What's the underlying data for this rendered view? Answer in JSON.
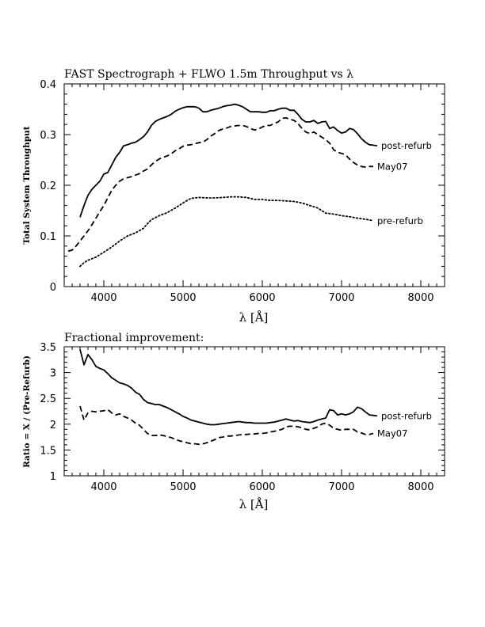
{
  "chart_data": [
    {
      "type": "line",
      "title": "FAST Spectrograph + FLWO 1.5m Throughput vs λ",
      "xlabel": "λ [Å]",
      "ylabel": "Total System Throughput",
      "xlim": [
        3500,
        8300
      ],
      "ylim": [
        0,
        0.4
      ],
      "xticks": [
        4000,
        5000,
        6000,
        7000,
        8000
      ],
      "xtick_labels": [
        "4000",
        "5000",
        "6000",
        "7000",
        "8000"
      ],
      "yticks": [
        0,
        0.1,
        0.2,
        0.3,
        0.4
      ],
      "ytick_labels": [
        "0",
        "0.1",
        "0.2",
        "0.3",
        "0.4"
      ],
      "legend": "inline end labels",
      "series": [
        {
          "name": "post-refurb",
          "style": "solid",
          "x": [
            3700,
            3750,
            3800,
            3850,
            3900,
            3950,
            4000,
            4050,
            4100,
            4150,
            4200,
            4250,
            4300,
            4350,
            4400,
            4450,
            4500,
            4550,
            4600,
            4650,
            4700,
            4750,
            4800,
            4850,
            4900,
            4950,
            5000,
            5050,
            5100,
            5150,
            5200,
            5250,
            5300,
            5350,
            5400,
            5450,
            5500,
            5550,
            5600,
            5650,
            5700,
            5750,
            5800,
            5850,
            5900,
            5950,
            6000,
            6050,
            6100,
            6150,
            6200,
            6250,
            6300,
            6350,
            6400,
            6450,
            6500,
            6550,
            6600,
            6650,
            6700,
            6750,
            6800,
            6850,
            6900,
            6950,
            7000,
            7050,
            7100,
            7150,
            7200,
            7250,
            7300,
            7350,
            7400,
            7450
          ],
          "y": [
            0.137,
            0.16,
            0.18,
            0.192,
            0.2,
            0.208,
            0.222,
            0.225,
            0.24,
            0.255,
            0.265,
            0.278,
            0.28,
            0.283,
            0.285,
            0.29,
            0.296,
            0.305,
            0.318,
            0.326,
            0.33,
            0.333,
            0.336,
            0.34,
            0.346,
            0.35,
            0.353,
            0.355,
            0.355,
            0.355,
            0.352,
            0.345,
            0.345,
            0.348,
            0.35,
            0.352,
            0.355,
            0.357,
            0.358,
            0.36,
            0.358,
            0.355,
            0.35,
            0.345,
            0.345,
            0.345,
            0.344,
            0.344,
            0.347,
            0.347,
            0.35,
            0.352,
            0.352,
            0.348,
            0.348,
            0.34,
            0.33,
            0.325,
            0.325,
            0.328,
            0.322,
            0.325,
            0.326,
            0.312,
            0.315,
            0.308,
            0.303,
            0.305,
            0.312,
            0.31,
            0.302,
            0.292,
            0.285,
            0.28,
            0.279,
            0.278
          ]
        },
        {
          "name": "May07",
          "style": "dashed",
          "x": [
            3550,
            3600,
            3650,
            3700,
            3750,
            3800,
            3850,
            3900,
            3950,
            4000,
            4050,
            4100,
            4150,
            4200,
            4250,
            4300,
            4350,
            4400,
            4450,
            4500,
            4550,
            4600,
            4650,
            4700,
            4750,
            4800,
            4850,
            4900,
            4950,
            5000,
            5050,
            5100,
            5150,
            5200,
            5250,
            5300,
            5350,
            5400,
            5450,
            5500,
            5550,
            5600,
            5650,
            5700,
            5750,
            5800,
            5850,
            5900,
            5950,
            6000,
            6050,
            6100,
            6150,
            6200,
            6250,
            6300,
            6350,
            6400,
            6450,
            6500,
            6550,
            6600,
            6650,
            6700,
            6750,
            6800,
            6850,
            6900,
            6950,
            7000,
            7050,
            7100,
            7150,
            7200,
            7250,
            7300,
            7350,
            7400
          ],
          "y": [
            0.07,
            0.072,
            0.08,
            0.09,
            0.1,
            0.11,
            0.122,
            0.135,
            0.148,
            0.16,
            0.175,
            0.19,
            0.2,
            0.208,
            0.213,
            0.215,
            0.217,
            0.22,
            0.223,
            0.228,
            0.232,
            0.24,
            0.247,
            0.252,
            0.255,
            0.258,
            0.262,
            0.268,
            0.272,
            0.277,
            0.279,
            0.28,
            0.282,
            0.284,
            0.285,
            0.29,
            0.297,
            0.302,
            0.308,
            0.311,
            0.313,
            0.316,
            0.317,
            0.318,
            0.318,
            0.316,
            0.312,
            0.309,
            0.311,
            0.315,
            0.318,
            0.318,
            0.322,
            0.325,
            0.332,
            0.333,
            0.33,
            0.328,
            0.322,
            0.312,
            0.305,
            0.302,
            0.305,
            0.3,
            0.295,
            0.29,
            0.283,
            0.27,
            0.265,
            0.263,
            0.26,
            0.252,
            0.245,
            0.24,
            0.237,
            0.236,
            0.237,
            0.237
          ]
        },
        {
          "name": "pre-refurb",
          "style": "dotted",
          "x": [
            3700,
            3750,
            3800,
            3900,
            4000,
            4100,
            4200,
            4300,
            4400,
            4500,
            4550,
            4600,
            4700,
            4800,
            4900,
            5000,
            5050,
            5100,
            5200,
            5300,
            5400,
            5500,
            5600,
            5700,
            5800,
            5900,
            6000,
            6100,
            6200,
            6300,
            6400,
            6500,
            6600,
            6700,
            6800,
            6900,
            7000,
            7100,
            7200,
            7300,
            7400
          ],
          "y": [
            0.04,
            0.047,
            0.052,
            0.058,
            0.068,
            0.078,
            0.09,
            0.1,
            0.106,
            0.115,
            0.124,
            0.132,
            0.14,
            0.146,
            0.155,
            0.165,
            0.17,
            0.174,
            0.176,
            0.175,
            0.175,
            0.176,
            0.177,
            0.177,
            0.176,
            0.172,
            0.172,
            0.17,
            0.17,
            0.169,
            0.168,
            0.165,
            0.16,
            0.155,
            0.145,
            0.143,
            0.14,
            0.138,
            0.135,
            0.133,
            0.13
          ]
        }
      ]
    },
    {
      "type": "line",
      "title": "Fractional improvement:",
      "xlabel": "λ [Å]",
      "ylabel": "Ratio = X / (Pre-Refurb)",
      "xlim": [
        3500,
        8300
      ],
      "ylim": [
        1,
        3.5
      ],
      "xticks": [
        4000,
        5000,
        6000,
        7000,
        8000
      ],
      "xtick_labels": [
        "4000",
        "5000",
        "6000",
        "7000",
        "8000"
      ],
      "yticks": [
        1,
        1.5,
        2,
        2.5,
        3,
        3.5
      ],
      "ytick_labels": [
        "1",
        "1.5",
        "2",
        "2.5",
        "3",
        "3.5"
      ],
      "legend": "inline end labels",
      "series": [
        {
          "name": "post-refurb",
          "style": "solid",
          "x": [
            3700,
            3750,
            3800,
            3850,
            3900,
            3950,
            4000,
            4050,
            4100,
            4150,
            4200,
            4250,
            4300,
            4350,
            4400,
            4450,
            4500,
            4550,
            4600,
            4650,
            4700,
            4750,
            4800,
            4850,
            4900,
            4950,
            5000,
            5050,
            5100,
            5150,
            5200,
            5250,
            5300,
            5350,
            5400,
            5450,
            5500,
            5550,
            5600,
            5650,
            5700,
            5750,
            5800,
            5850,
            5900,
            5950,
            6000,
            6050,
            6100,
            6150,
            6200,
            6250,
            6300,
            6350,
            6400,
            6450,
            6500,
            6550,
            6600,
            6650,
            6700,
            6750,
            6800,
            6850,
            6900,
            6950,
            7000,
            7050,
            7100,
            7150,
            7200,
            7250,
            7300,
            7350,
            7400,
            7450
          ],
          "y": [
            3.45,
            3.15,
            3.35,
            3.25,
            3.12,
            3.08,
            3.05,
            2.98,
            2.9,
            2.85,
            2.8,
            2.78,
            2.75,
            2.7,
            2.62,
            2.58,
            2.48,
            2.42,
            2.4,
            2.38,
            2.38,
            2.35,
            2.32,
            2.28,
            2.24,
            2.2,
            2.15,
            2.12,
            2.08,
            2.06,
            2.04,
            2.02,
            2.0,
            1.99,
            1.99,
            2.0,
            2.01,
            2.02,
            2.03,
            2.04,
            2.05,
            2.04,
            2.03,
            2.03,
            2.02,
            2.02,
            2.02,
            2.02,
            2.03,
            2.04,
            2.06,
            2.08,
            2.1,
            2.08,
            2.06,
            2.07,
            2.05,
            2.04,
            2.03,
            2.05,
            2.08,
            2.1,
            2.12,
            2.28,
            2.26,
            2.18,
            2.2,
            2.18,
            2.2,
            2.24,
            2.33,
            2.3,
            2.24,
            2.18,
            2.17,
            2.16
          ]
        },
        {
          "name": "May07",
          "style": "dashed",
          "x": [
            3700,
            3750,
            3800,
            3850,
            3900,
            3950,
            4000,
            4050,
            4100,
            4150,
            4200,
            4250,
            4300,
            4350,
            4400,
            4450,
            4500,
            4550,
            4600,
            4650,
            4700,
            4750,
            4800,
            4850,
            4900,
            4950,
            5000,
            5050,
            5100,
            5150,
            5200,
            5250,
            5300,
            5350,
            5400,
            5450,
            5500,
            5550,
            5600,
            5650,
            5700,
            5750,
            5800,
            5850,
            5900,
            5950,
            6000,
            6050,
            6100,
            6150,
            6200,
            6250,
            6300,
            6350,
            6400,
            6450,
            6500,
            6550,
            6600,
            6650,
            6700,
            6750,
            6800,
            6850,
            6900,
            6950,
            7000,
            7050,
            7100,
            7150,
            7200,
            7250,
            7300,
            7350,
            7400
          ],
          "y": [
            2.35,
            2.08,
            2.22,
            2.25,
            2.24,
            2.25,
            2.26,
            2.28,
            2.22,
            2.18,
            2.2,
            2.15,
            2.12,
            2.08,
            2.02,
            1.98,
            1.9,
            1.82,
            1.78,
            1.78,
            1.79,
            1.78,
            1.76,
            1.74,
            1.71,
            1.68,
            1.66,
            1.64,
            1.62,
            1.62,
            1.61,
            1.62,
            1.64,
            1.67,
            1.7,
            1.74,
            1.75,
            1.77,
            1.77,
            1.78,
            1.79,
            1.8,
            1.8,
            1.81,
            1.81,
            1.82,
            1.82,
            1.83,
            1.85,
            1.86,
            1.88,
            1.9,
            1.95,
            1.96,
            1.96,
            1.95,
            1.93,
            1.9,
            1.89,
            1.92,
            1.95,
            2.0,
            2.02,
            1.98,
            1.92,
            1.9,
            1.88,
            1.9,
            1.9,
            1.9,
            1.85,
            1.83,
            1.8,
            1.8,
            1.82
          ]
        }
      ]
    }
  ]
}
